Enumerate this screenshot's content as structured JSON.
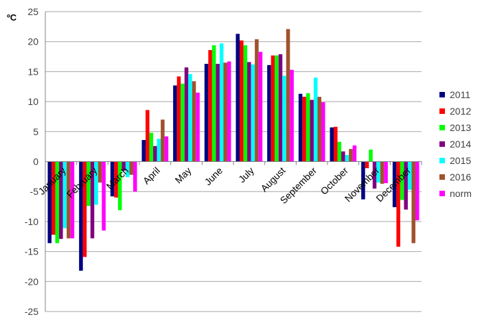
{
  "chart_data": {
    "type": "bar",
    "ylabel": "ºC",
    "ylim": [
      -25,
      25
    ],
    "ytick_step": 5,
    "grid": true,
    "legend_position": "right",
    "categories": [
      "January",
      "February",
      "March",
      "April",
      "May",
      "June",
      "July",
      "August",
      "September",
      "October",
      "November",
      "December"
    ],
    "yticks": [
      "25",
      "20",
      "15",
      "10",
      "5",
      "0",
      "-5",
      "-10",
      "-15",
      "-20",
      "-25"
    ],
    "series": [
      {
        "name": "2011",
        "color": "#000080",
        "values": [
          -13.6,
          -18.2,
          -5.8,
          3.6,
          12.7,
          16.3,
          21.3,
          16.1,
          11.3,
          5.7,
          -6.3,
          -7.6
        ]
      },
      {
        "name": "2012",
        "color": "#ff0000",
        "values": [
          -12.2,
          -15.9,
          -6.0,
          8.6,
          14.2,
          18.6,
          20.2,
          17.7,
          10.8,
          5.8,
          -1.1,
          -14.2
        ]
      },
      {
        "name": "2013",
        "color": "#00ff00",
        "values": [
          -13.6,
          -7.4,
          -8.1,
          4.8,
          13.0,
          19.4,
          19.4,
          17.7,
          11.4,
          3.3,
          2.0,
          -6.4
        ]
      },
      {
        "name": "2014",
        "color": "#800080",
        "values": [
          -12.9,
          -12.8,
          -1.5,
          2.6,
          15.7,
          16.3,
          16.6,
          17.9,
          10.3,
          1.7,
          -4.5,
          -8.0
        ]
      },
      {
        "name": "2015",
        "color": "#00ffff",
        "values": [
          -11.1,
          -7.2,
          -2.6,
          3.8,
          14.6,
          19.7,
          16.2,
          14.3,
          14.0,
          1.1,
          -3.5,
          -4.7
        ]
      },
      {
        "name": "2016",
        "color": "#a0522d",
        "values": [
          -12.8,
          -3.5,
          -2.2,
          7.0,
          13.4,
          16.5,
          20.4,
          22.1,
          10.8,
          2.1,
          -3.7,
          -13.6
        ]
      },
      {
        "name": "norm",
        "color": "#ff00ff",
        "values": [
          -12.8,
          -11.5,
          -5.0,
          4.2,
          11.5,
          16.7,
          18.3,
          15.3,
          9.9,
          2.7,
          -3.6,
          -9.8
        ]
      }
    ]
  }
}
